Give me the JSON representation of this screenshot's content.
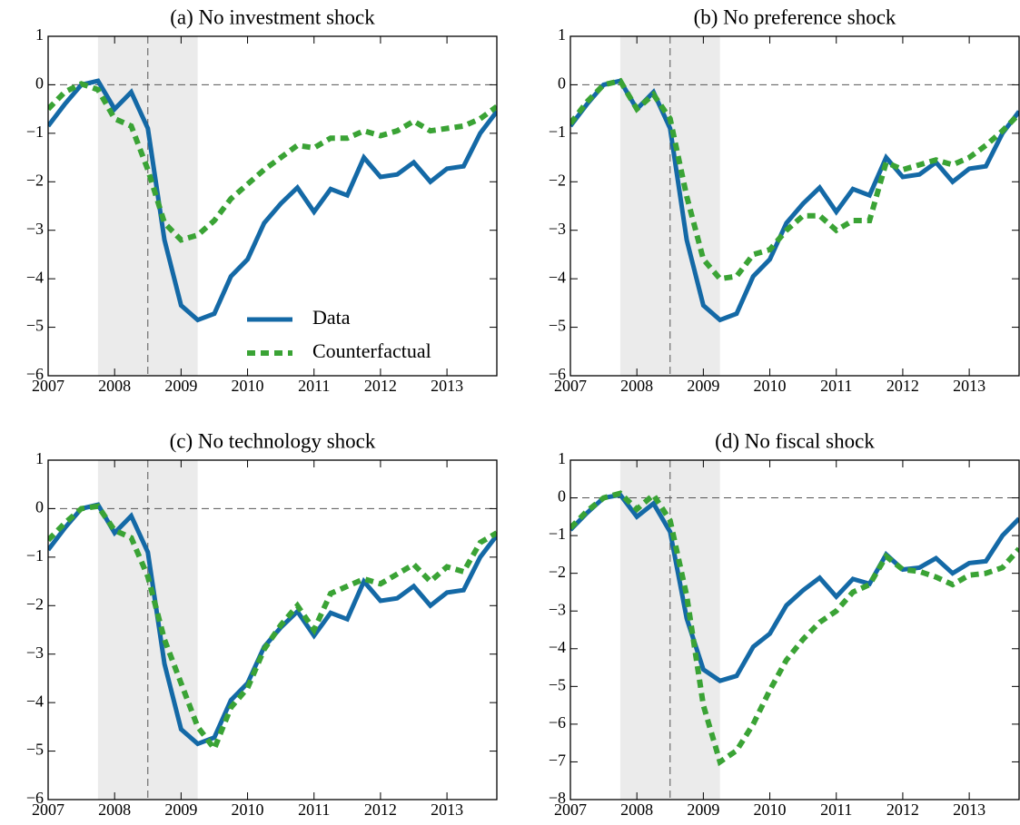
{
  "chart_data": [
    {
      "type": "line",
      "title": "(a) No investment shock",
      "x": [
        2007,
        2007.25,
        2007.5,
        2007.75,
        2008,
        2008.25,
        2008.5,
        2008.75,
        2009,
        2009.25,
        2009.5,
        2009.75,
        2010,
        2010.25,
        2010.5,
        2010.75,
        2011,
        2011.25,
        2011.5,
        2011.75,
        2012,
        2012.25,
        2012.5,
        2012.75,
        2013,
        2013.25,
        2013.5,
        2013.75
      ],
      "series": [
        {
          "name": "Data",
          "color": "#1469a6",
          "values": [
            -0.85,
            -0.4,
            0.0,
            0.08,
            -0.5,
            -0.15,
            -0.9,
            -3.2,
            -4.55,
            -4.85,
            -4.72,
            -3.95,
            -3.6,
            -2.85,
            -2.45,
            -2.12,
            -2.62,
            -2.15,
            -2.28,
            -1.5,
            -1.9,
            -1.85,
            -1.6,
            -2.0,
            -1.73,
            -1.68,
            -1.0,
            -0.55
          ]
        },
        {
          "name": "Counterfactual",
          "color": "#3aa335",
          "dashed": true,
          "values": [
            -0.5,
            -0.15,
            0.02,
            -0.1,
            -0.7,
            -0.85,
            -1.75,
            -2.85,
            -3.2,
            -3.1,
            -2.8,
            -2.35,
            -2.05,
            -1.75,
            -1.5,
            -1.25,
            -1.3,
            -1.1,
            -1.1,
            -0.95,
            -1.05,
            -0.95,
            -0.75,
            -0.95,
            -0.9,
            -0.85,
            -0.7,
            -0.45
          ]
        }
      ],
      "xlim": [
        2007,
        2013.75
      ],
      "xticks": [
        2007,
        2008,
        2009,
        2010,
        2011,
        2012,
        2013
      ],
      "ylim": [
        -6,
        1
      ],
      "yticks": [
        {
          "value": -6,
          "label": "−6"
        },
        {
          "value": -5,
          "label": "−5"
        },
        {
          "value": -4,
          "label": "−4"
        },
        {
          "value": -3,
          "label": "−3"
        },
        {
          "value": -2,
          "label": "−2"
        },
        {
          "value": -1,
          "label": "−1"
        },
        0,
        1
      ],
      "shade": [
        2007.75,
        2009.25
      ],
      "vline": 2008.5,
      "hline": 0,
      "legend": "lower right"
    },
    {
      "type": "line",
      "title": "(b) No preference shock",
      "x": [
        2007,
        2007.25,
        2007.5,
        2007.75,
        2008,
        2008.25,
        2008.5,
        2008.75,
        2009,
        2009.25,
        2009.5,
        2009.75,
        2010,
        2010.25,
        2010.5,
        2010.75,
        2011,
        2011.25,
        2011.5,
        2011.75,
        2012,
        2012.25,
        2012.5,
        2012.75,
        2013,
        2013.25,
        2013.5,
        2013.75
      ],
      "series": [
        {
          "color": "#1469a6",
          "values": [
            -0.85,
            -0.4,
            0.0,
            0.08,
            -0.5,
            -0.15,
            -0.9,
            -3.2,
            -4.55,
            -4.85,
            -4.72,
            -3.95,
            -3.6,
            -2.85,
            -2.45,
            -2.12,
            -2.62,
            -2.15,
            -2.28,
            -1.5,
            -1.9,
            -1.85,
            -1.6,
            -2.0,
            -1.73,
            -1.68,
            -1.0,
            -0.55
          ]
        },
        {
          "color": "#3aa335",
          "dashed": true,
          "values": [
            -0.8,
            -0.35,
            0.0,
            0.08,
            -0.5,
            -0.2,
            -0.7,
            -2.3,
            -3.6,
            -4.0,
            -3.95,
            -3.5,
            -3.4,
            -3.0,
            -2.7,
            -2.7,
            -3.0,
            -2.8,
            -2.8,
            -1.6,
            -1.75,
            -1.65,
            -1.55,
            -1.65,
            -1.5,
            -1.25,
            -0.95,
            -0.6
          ]
        }
      ],
      "xlim": [
        2007,
        2013.75
      ],
      "xticks": [
        2007,
        2008,
        2009,
        2010,
        2011,
        2012,
        2013
      ],
      "ylim": [
        -6,
        1
      ],
      "yticks": [
        {
          "value": -6,
          "label": "−6"
        },
        {
          "value": -5,
          "label": "−5"
        },
        {
          "value": -4,
          "label": "−4"
        },
        {
          "value": -3,
          "label": "−3"
        },
        {
          "value": -2,
          "label": "−2"
        },
        {
          "value": -1,
          "label": "−1"
        },
        0,
        1
      ],
      "shade": [
        2007.75,
        2009.25
      ],
      "vline": 2008.5,
      "hline": 0
    },
    {
      "type": "line",
      "title": "(c) No technology shock",
      "x": [
        2007,
        2007.25,
        2007.5,
        2007.75,
        2008,
        2008.25,
        2008.5,
        2008.75,
        2009,
        2009.25,
        2009.5,
        2009.75,
        2010,
        2010.25,
        2010.5,
        2010.75,
        2011,
        2011.25,
        2011.5,
        2011.75,
        2012,
        2012.25,
        2012.5,
        2012.75,
        2013,
        2013.25,
        2013.5,
        2013.75
      ],
      "series": [
        {
          "color": "#1469a6",
          "values": [
            -0.85,
            -0.4,
            0.0,
            0.08,
            -0.5,
            -0.15,
            -0.9,
            -3.2,
            -4.55,
            -4.85,
            -4.72,
            -3.95,
            -3.6,
            -2.85,
            -2.45,
            -2.12,
            -2.62,
            -2.15,
            -2.28,
            -1.5,
            -1.9,
            -1.85,
            -1.6,
            -2.0,
            -1.73,
            -1.68,
            -1.0,
            -0.55
          ]
        },
        {
          "color": "#3aa335",
          "dashed": true,
          "values": [
            -0.65,
            -0.3,
            0.0,
            0.05,
            -0.45,
            -0.6,
            -1.4,
            -2.7,
            -3.6,
            -4.5,
            -4.95,
            -4.1,
            -3.7,
            -2.9,
            -2.4,
            -2.0,
            -2.5,
            -1.75,
            -1.6,
            -1.45,
            -1.55,
            -1.35,
            -1.15,
            -1.5,
            -1.2,
            -1.3,
            -0.7,
            -0.5
          ]
        }
      ],
      "xlim": [
        2007,
        2013.75
      ],
      "xticks": [
        2007,
        2008,
        2009,
        2010,
        2011,
        2012,
        2013
      ],
      "ylim": [
        -6,
        1
      ],
      "yticks": [
        {
          "value": -6,
          "label": "−6"
        },
        {
          "value": -5,
          "label": "−5"
        },
        {
          "value": -4,
          "label": "−4"
        },
        {
          "value": -3,
          "label": "−3"
        },
        {
          "value": -2,
          "label": "−2"
        },
        {
          "value": -1,
          "label": "−1"
        },
        0,
        1
      ],
      "shade": [
        2007.75,
        2009.25
      ],
      "vline": 2008.5,
      "hline": 0
    },
    {
      "type": "line",
      "title": "(d) No fiscal shock",
      "x": [
        2007,
        2007.25,
        2007.5,
        2007.75,
        2008,
        2008.25,
        2008.5,
        2008.75,
        2009,
        2009.25,
        2009.5,
        2009.75,
        2010,
        2010.25,
        2010.5,
        2010.75,
        2011,
        2011.25,
        2011.5,
        2011.75,
        2012,
        2012.25,
        2012.5,
        2012.75,
        2013,
        2013.25,
        2013.5,
        2013.75
      ],
      "series": [
        {
          "color": "#1469a6",
          "values": [
            -0.85,
            -0.4,
            0.0,
            0.08,
            -0.5,
            -0.15,
            -0.9,
            -3.2,
            -4.55,
            -4.85,
            -4.72,
            -3.95,
            -3.6,
            -2.85,
            -2.45,
            -2.12,
            -2.62,
            -2.15,
            -2.28,
            -1.5,
            -1.9,
            -1.85,
            -1.6,
            -2.0,
            -1.73,
            -1.68,
            -1.0,
            -0.55
          ]
        },
        {
          "color": "#3aa335",
          "dashed": true,
          "values": [
            -0.8,
            -0.35,
            0.0,
            0.12,
            -0.3,
            0.08,
            -0.6,
            -2.6,
            -5.5,
            -7.0,
            -6.7,
            -6.0,
            -5.1,
            -4.3,
            -3.75,
            -3.3,
            -3.0,
            -2.5,
            -2.3,
            -1.55,
            -1.9,
            -1.95,
            -2.1,
            -2.3,
            -2.05,
            -2.0,
            -1.85,
            -1.35
          ]
        }
      ],
      "xlim": [
        2007,
        2013.75
      ],
      "xticks": [
        2007,
        2008,
        2009,
        2010,
        2011,
        2012,
        2013
      ],
      "ylim": [
        -8,
        1
      ],
      "yticks": [
        {
          "value": -8,
          "label": "−8"
        },
        {
          "value": -7,
          "label": "−7"
        },
        {
          "value": -6,
          "label": "−6"
        },
        {
          "value": -5,
          "label": "−5"
        },
        {
          "value": -4,
          "label": "−4"
        },
        {
          "value": -3,
          "label": "−3"
        },
        {
          "value": -2,
          "label": "−2"
        },
        {
          "value": -1,
          "label": "−1"
        },
        0,
        1
      ],
      "shade": [
        2007.75,
        2009.25
      ],
      "vline": 2008.5,
      "hline": 0
    }
  ]
}
